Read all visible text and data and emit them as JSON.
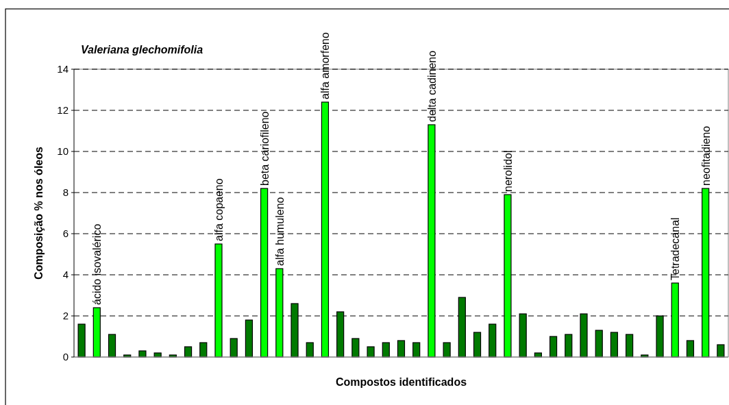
{
  "chart_data": {
    "type": "bar",
    "title": "Valeriana glechomifolia",
    "xlabel": "Compostos identificados",
    "ylabel": "Composição % nos óleos",
    "categories": [
      null,
      "ácido isovalérico",
      null,
      null,
      null,
      null,
      null,
      null,
      null,
      "alfa copaeno",
      null,
      null,
      "beta cariofileno",
      "alfa humuleno",
      null,
      null,
      "alfa amorfeno",
      null,
      null,
      null,
      null,
      null,
      null,
      "delta cadineno",
      null,
      null,
      null,
      null,
      "nerolidol",
      null,
      null,
      null,
      null,
      null,
      null,
      null,
      null,
      null,
      null,
      "Tetradecanal",
      null,
      "neofitadieno",
      null
    ],
    "values": [
      1.6,
      2.4,
      1.1,
      0.1,
      0.3,
      0.2,
      0.1,
      0.5,
      0.7,
      5.5,
      0.9,
      1.8,
      8.2,
      4.3,
      2.6,
      0.7,
      12.4,
      2.2,
      0.9,
      0.5,
      0.7,
      0.8,
      0.7,
      11.3,
      0.7,
      2.9,
      1.2,
      1.6,
      7.9,
      2.1,
      0.2,
      1.0,
      1.1,
      2.1,
      1.3,
      1.2,
      1.1,
      0.1,
      2.0,
      3.6,
      0.8,
      8.2,
      0.6
    ],
    "colors": [
      "#007a00",
      "#00ff00",
      "#007a00",
      "#007a00",
      "#007a00",
      "#007a00",
      "#007a00",
      "#007a00",
      "#007a00",
      "#00ff00",
      "#007a00",
      "#007a00",
      "#00ff00",
      "#00ff00",
      "#007a00",
      "#007a00",
      "#00ff00",
      "#007a00",
      "#007a00",
      "#007a00",
      "#007a00",
      "#007a00",
      "#007a00",
      "#00ff00",
      "#007a00",
      "#007a00",
      "#007a00",
      "#007a00",
      "#00ff00",
      "#007a00",
      "#007a00",
      "#007a00",
      "#007a00",
      "#007a00",
      "#007a00",
      "#007a00",
      "#007a00",
      "#007a00",
      "#007a00",
      "#00ff00",
      "#007a00",
      "#00ff00",
      "#007a00"
    ],
    "ylim": [
      0,
      14
    ],
    "yticks": [
      0,
      2,
      4,
      6,
      8,
      10,
      12,
      14
    ],
    "grid": "y"
  }
}
